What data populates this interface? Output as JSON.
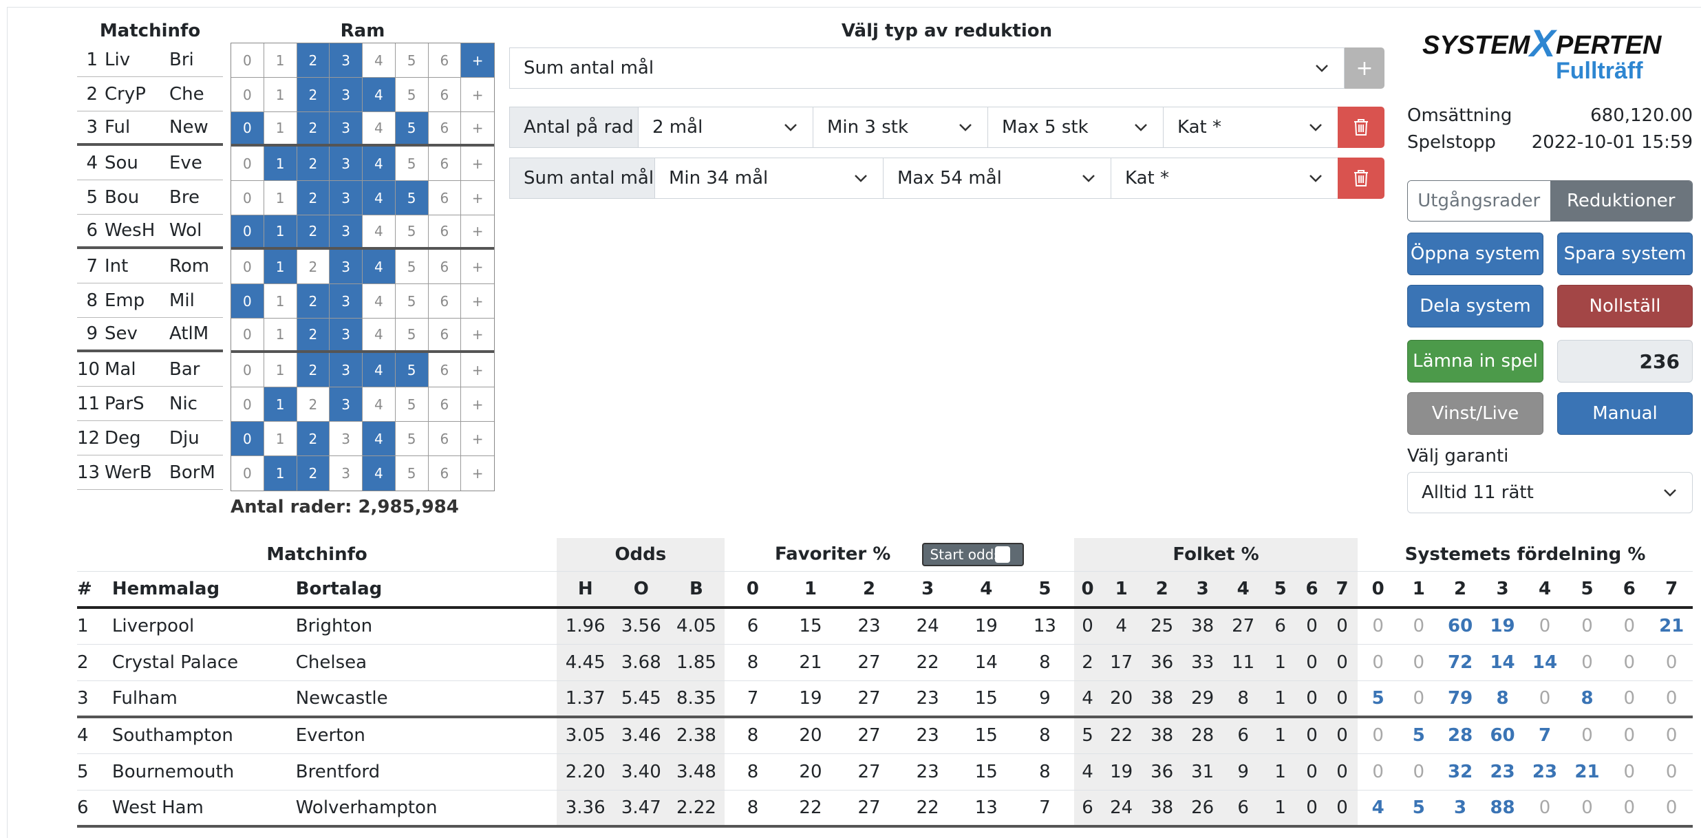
{
  "matchinfo_title": "Matchinfo",
  "ram_title": "Ram",
  "matches": [
    {
      "n": "1",
      "h": "Liv",
      "a": "Bri"
    },
    {
      "n": "2",
      "h": "CryP",
      "a": "Che"
    },
    {
      "n": "3",
      "h": "Ful",
      "a": "New"
    },
    {
      "n": "4",
      "h": "Sou",
      "a": "Eve"
    },
    {
      "n": "5",
      "h": "Bou",
      "a": "Bre"
    },
    {
      "n": "6",
      "h": "WesH",
      "a": "Wol"
    },
    {
      "n": "7",
      "h": "Int",
      "a": "Rom"
    },
    {
      "n": "8",
      "h": "Emp",
      "a": "Mil"
    },
    {
      "n": "9",
      "h": "Sev",
      "a": "AtlM"
    },
    {
      "n": "10",
      "h": "Mal",
      "a": "Bar"
    },
    {
      "n": "11",
      "h": "ParS",
      "a": "Nic"
    },
    {
      "n": "12",
      "h": "Deg",
      "a": "Dju"
    },
    {
      "n": "13",
      "h": "WerB",
      "a": "BorM"
    }
  ],
  "ram_labels": [
    "0",
    "1",
    "2",
    "3",
    "4",
    "5",
    "6",
    "+"
  ],
  "ram_selected": [
    [
      2,
      3,
      7
    ],
    [
      2,
      3,
      4
    ],
    [
      0,
      2,
      3,
      5
    ],
    [
      1,
      2,
      3,
      4
    ],
    [
      2,
      3,
      4,
      5
    ],
    [
      0,
      1,
      2,
      3
    ],
    [
      1,
      3,
      4
    ],
    [
      0,
      2,
      3
    ],
    [
      2,
      3
    ],
    [
      2,
      3,
      4,
      5
    ],
    [
      1,
      3
    ],
    [
      0,
      2,
      4
    ],
    [
      1,
      2,
      4
    ]
  ],
  "antal_rader": "Antal rader: 2,985,984",
  "reduction": {
    "title": "Välj typ av reduktion",
    "type_select": "Sum antal mål",
    "add_label": "+",
    "rows": [
      {
        "label": "Antal på rad",
        "s1": "2 mål",
        "s2": "Min 3 stk",
        "s3": "Max 5 stk",
        "s4": "Kat *"
      },
      {
        "label": "Sum antal mål",
        "s1": "Min 34 mål",
        "s2": "Max 54 mål",
        "s3": "Kat *"
      }
    ]
  },
  "logo": {
    "line1a": "SYSTEM",
    "x": "X",
    "line1b": "PERTEN",
    "line2": "Fullträff"
  },
  "info": {
    "omsattning_label": "Omsättning",
    "omsattning_value": "680,120.00",
    "spelstopp_label": "Spelstopp",
    "spelstopp_value": "2022-10-01 15:59"
  },
  "toggle": {
    "left": "Utgångsrader",
    "right": "Reduktioner"
  },
  "buttons": {
    "open": "Öppna system",
    "save": "Spara system",
    "share": "Dela system",
    "reset": "Nollställ",
    "submit": "Lämna in spel",
    "count": "236",
    "live": "Vinst/Live",
    "manual": "Manual"
  },
  "garanti": {
    "label": "Välj garanti",
    "value": "Alltid 11 rätt"
  },
  "table": {
    "group_matchinfo": "Matchinfo",
    "group_odds": "Odds",
    "group_fav": "Favoriter %",
    "start_odds": "Start odds",
    "group_folket": "Folket %",
    "group_system": "Systemets fördelning %",
    "col_num": "#",
    "col_home": "Hemmalag",
    "col_away": "Bortalag",
    "odds_cols": [
      "H",
      "O",
      "B"
    ],
    "fav_cols": [
      "0",
      "1",
      "2",
      "3",
      "4",
      "5"
    ],
    "folk_cols": [
      "0",
      "1",
      "2",
      "3",
      "4",
      "5",
      "6",
      "7"
    ],
    "sys_cols": [
      "0",
      "1",
      "2",
      "3",
      "4",
      "5",
      "6",
      "7"
    ],
    "rows": [
      {
        "n": "1",
        "home": "Liverpool",
        "away": "Brighton",
        "odds": [
          "1.96",
          "3.56",
          "4.05"
        ],
        "fav": [
          "6",
          "15",
          "23",
          "24",
          "19",
          "13"
        ],
        "folk": [
          "0",
          "4",
          "25",
          "38",
          "27",
          "6",
          "0",
          "0"
        ],
        "sys": [
          "0",
          "0",
          "60",
          "19",
          "0",
          "0",
          "0",
          "21"
        ]
      },
      {
        "n": "2",
        "home": "Crystal Palace",
        "away": "Chelsea",
        "odds": [
          "4.45",
          "3.68",
          "1.85"
        ],
        "fav": [
          "8",
          "21",
          "27",
          "22",
          "14",
          "8"
        ],
        "folk": [
          "2",
          "17",
          "36",
          "33",
          "11",
          "1",
          "0",
          "0"
        ],
        "sys": [
          "0",
          "0",
          "72",
          "14",
          "14",
          "0",
          "0",
          "0"
        ]
      },
      {
        "n": "3",
        "home": "Fulham",
        "away": "Newcastle",
        "odds": [
          "1.37",
          "5.45",
          "8.35"
        ],
        "fav": [
          "7",
          "19",
          "27",
          "23",
          "15",
          "9"
        ],
        "folk": [
          "4",
          "20",
          "38",
          "29",
          "8",
          "1",
          "0",
          "0"
        ],
        "sys": [
          "5",
          "0",
          "79",
          "8",
          "0",
          "8",
          "0",
          "0"
        ]
      },
      {
        "n": "4",
        "home": "Southampton",
        "away": "Everton",
        "odds": [
          "3.05",
          "3.46",
          "2.38"
        ],
        "fav": [
          "8",
          "20",
          "27",
          "23",
          "15",
          "8"
        ],
        "folk": [
          "5",
          "22",
          "38",
          "28",
          "6",
          "1",
          "0",
          "0"
        ],
        "sys": [
          "0",
          "5",
          "28",
          "60",
          "7",
          "0",
          "0",
          "0"
        ]
      },
      {
        "n": "5",
        "home": "Bournemouth",
        "away": "Brentford",
        "odds": [
          "2.20",
          "3.40",
          "3.48"
        ],
        "fav": [
          "8",
          "20",
          "27",
          "23",
          "15",
          "8"
        ],
        "folk": [
          "4",
          "19",
          "36",
          "31",
          "9",
          "1",
          "0",
          "0"
        ],
        "sys": [
          "0",
          "0",
          "32",
          "23",
          "23",
          "21",
          "0",
          "0"
        ]
      },
      {
        "n": "6",
        "home": "West Ham",
        "away": "Wolverhampton",
        "odds": [
          "3.36",
          "3.47",
          "2.22"
        ],
        "fav": [
          "8",
          "22",
          "27",
          "22",
          "13",
          "7"
        ],
        "folk": [
          "6",
          "24",
          "38",
          "26",
          "6",
          "1",
          "0",
          "0"
        ],
        "sys": [
          "4",
          "5",
          "3",
          "88",
          "0",
          "0",
          "0",
          "0"
        ]
      }
    ]
  },
  "colors": {
    "selected": "#3a74b5",
    "delete": "#d9534f",
    "reset": "#a34646",
    "submit": "#4c9a4a"
  }
}
